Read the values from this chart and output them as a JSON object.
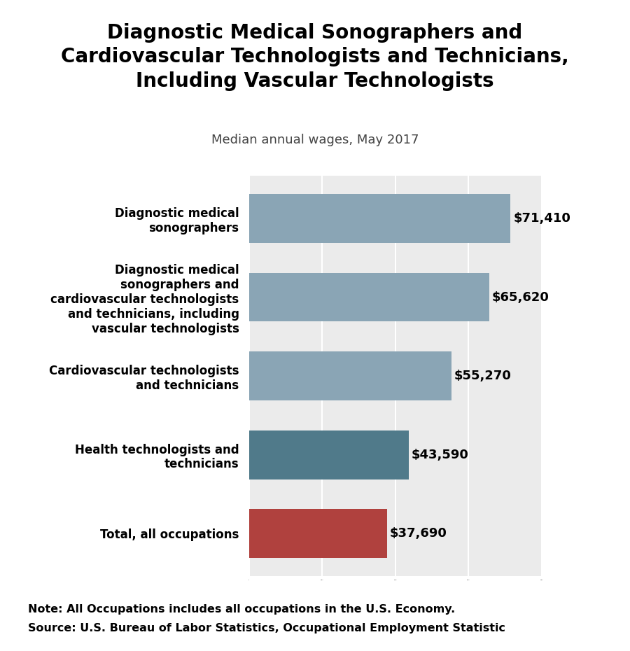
{
  "title": "Diagnostic Medical Sonographers and\nCardiovascular Technologists and Technicians,\nIncluding Vascular Technologists",
  "subtitle": "Median annual wages, May 2017",
  "categories": [
    "Total, all occupations",
    "Health technologists and\ntechnicians",
    "Cardiovascular technologists\nand technicians",
    "Diagnostic medical\nsonographers and\ncardiovascular technologists\nand technicians, including\nvascular technologists",
    "Diagnostic medical\nsonographers"
  ],
  "values": [
    37690,
    43590,
    55270,
    65620,
    71410
  ],
  "labels": [
    "$37,690",
    "$43,590",
    "$55,270",
    "$65,620",
    "$71,410"
  ],
  "bar_colors": [
    "#b0413e",
    "#507a8a",
    "#8aa5b5",
    "#8aa5b5",
    "#8aa5b5"
  ],
  "background_color": "#ffffff",
  "plot_background": "#ebebeb",
  "note_line1": "Note: All Occupations includes all occupations in the U.S. Economy.",
  "note_line2": "Source: U.S. Bureau of Labor Statistics, Occupational Employment Statistic",
  "xlim": [
    0,
    80000
  ],
  "title_fontsize": 20,
  "subtitle_fontsize": 13,
  "label_fontsize": 13,
  "ytick_fontsize": 12,
  "note_fontsize": 11.5
}
